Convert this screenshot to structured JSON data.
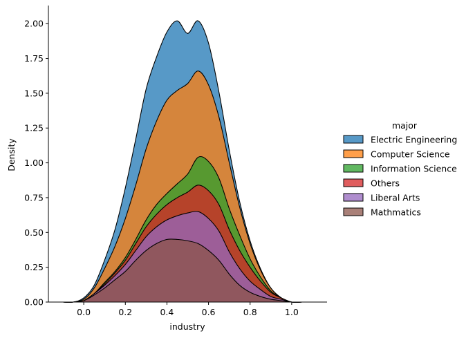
{
  "chart_data": {
    "type": "area",
    "style": "stacked density (KDE) layers",
    "xlabel": "industry",
    "ylabel": "Density",
    "xlim": [
      -0.17,
      1.17
    ],
    "ylim": [
      0,
      2.13
    ],
    "xticks": [
      "0.0",
      "0.2",
      "0.4",
      "0.6",
      "0.8",
      "1.0"
    ],
    "xtick_values": [
      0.0,
      0.2,
      0.4,
      0.6,
      0.8,
      1.0
    ],
    "yticks": [
      "0.00",
      "0.25",
      "0.50",
      "0.75",
      "1.00",
      "1.25",
      "1.50",
      "1.75",
      "2.00"
    ],
    "ytick_values": [
      0,
      0.25,
      0.5,
      0.75,
      1.0,
      1.25,
      1.5,
      1.75,
      2.0
    ],
    "legend": {
      "title": "major",
      "placement": "right"
    },
    "x": [
      -0.1,
      -0.05,
      0.0,
      0.05,
      0.1,
      0.15,
      0.2,
      0.25,
      0.3,
      0.35,
      0.4,
      0.45,
      0.5,
      0.55,
      0.6,
      0.65,
      0.7,
      0.75,
      0.8,
      0.85,
      0.9,
      0.95,
      1.0,
      1.05,
      1.1
    ],
    "series": [
      {
        "name": "Mathmatics",
        "color": "#8c564b",
        "values": [
          0.0,
          0.0,
          0.01,
          0.05,
          0.1,
          0.16,
          0.22,
          0.3,
          0.37,
          0.42,
          0.45,
          0.45,
          0.44,
          0.42,
          0.37,
          0.3,
          0.2,
          0.12,
          0.07,
          0.04,
          0.02,
          0.01,
          0.0,
          0.0,
          0.0
        ]
      },
      {
        "name": "Liberal Arts",
        "color": "#9467bd",
        "values": [
          0.0,
          0.0,
          0.0,
          0.01,
          0.02,
          0.03,
          0.05,
          0.07,
          0.1,
          0.12,
          0.14,
          0.17,
          0.2,
          0.23,
          0.23,
          0.21,
          0.16,
          0.12,
          0.08,
          0.05,
          0.02,
          0.01,
          0.0,
          0.0,
          0.0
        ]
      },
      {
        "name": "Others",
        "color": "#d62728",
        "values": [
          0.0,
          0.0,
          0.0,
          0.0,
          0.01,
          0.02,
          0.03,
          0.05,
          0.07,
          0.09,
          0.11,
          0.13,
          0.15,
          0.19,
          0.2,
          0.19,
          0.16,
          0.13,
          0.1,
          0.06,
          0.03,
          0.01,
          0.0,
          0.0,
          0.0
        ]
      },
      {
        "name": "Information Science",
        "color": "#2ca02c",
        "values": [
          0.0,
          0.0,
          0.0,
          0.0,
          0.01,
          0.01,
          0.02,
          0.03,
          0.05,
          0.07,
          0.08,
          0.1,
          0.13,
          0.2,
          0.21,
          0.19,
          0.15,
          0.11,
          0.06,
          0.03,
          0.01,
          0.0,
          0.0,
          0.0,
          0.0
        ]
      },
      {
        "name": "Computer Science",
        "color": "#ff7f0e",
        "values": [
          0.0,
          0.0,
          0.01,
          0.04,
          0.1,
          0.18,
          0.28,
          0.39,
          0.51,
          0.6,
          0.67,
          0.67,
          0.65,
          0.62,
          0.55,
          0.44,
          0.33,
          0.2,
          0.11,
          0.05,
          0.02,
          0.0,
          0.0,
          0.0,
          0.0
        ]
      },
      {
        "name": "Electric Engineering",
        "color": "#1f77b4",
        "values": [
          0.0,
          0.0,
          0.01,
          0.02,
          0.06,
          0.12,
          0.22,
          0.33,
          0.43,
          0.46,
          0.49,
          0.5,
          0.36,
          0.36,
          0.3,
          0.18,
          0.09,
          0.04,
          0.02,
          0.01,
          0.0,
          0.0,
          0.0,
          0.0,
          0.0
        ]
      }
    ]
  }
}
